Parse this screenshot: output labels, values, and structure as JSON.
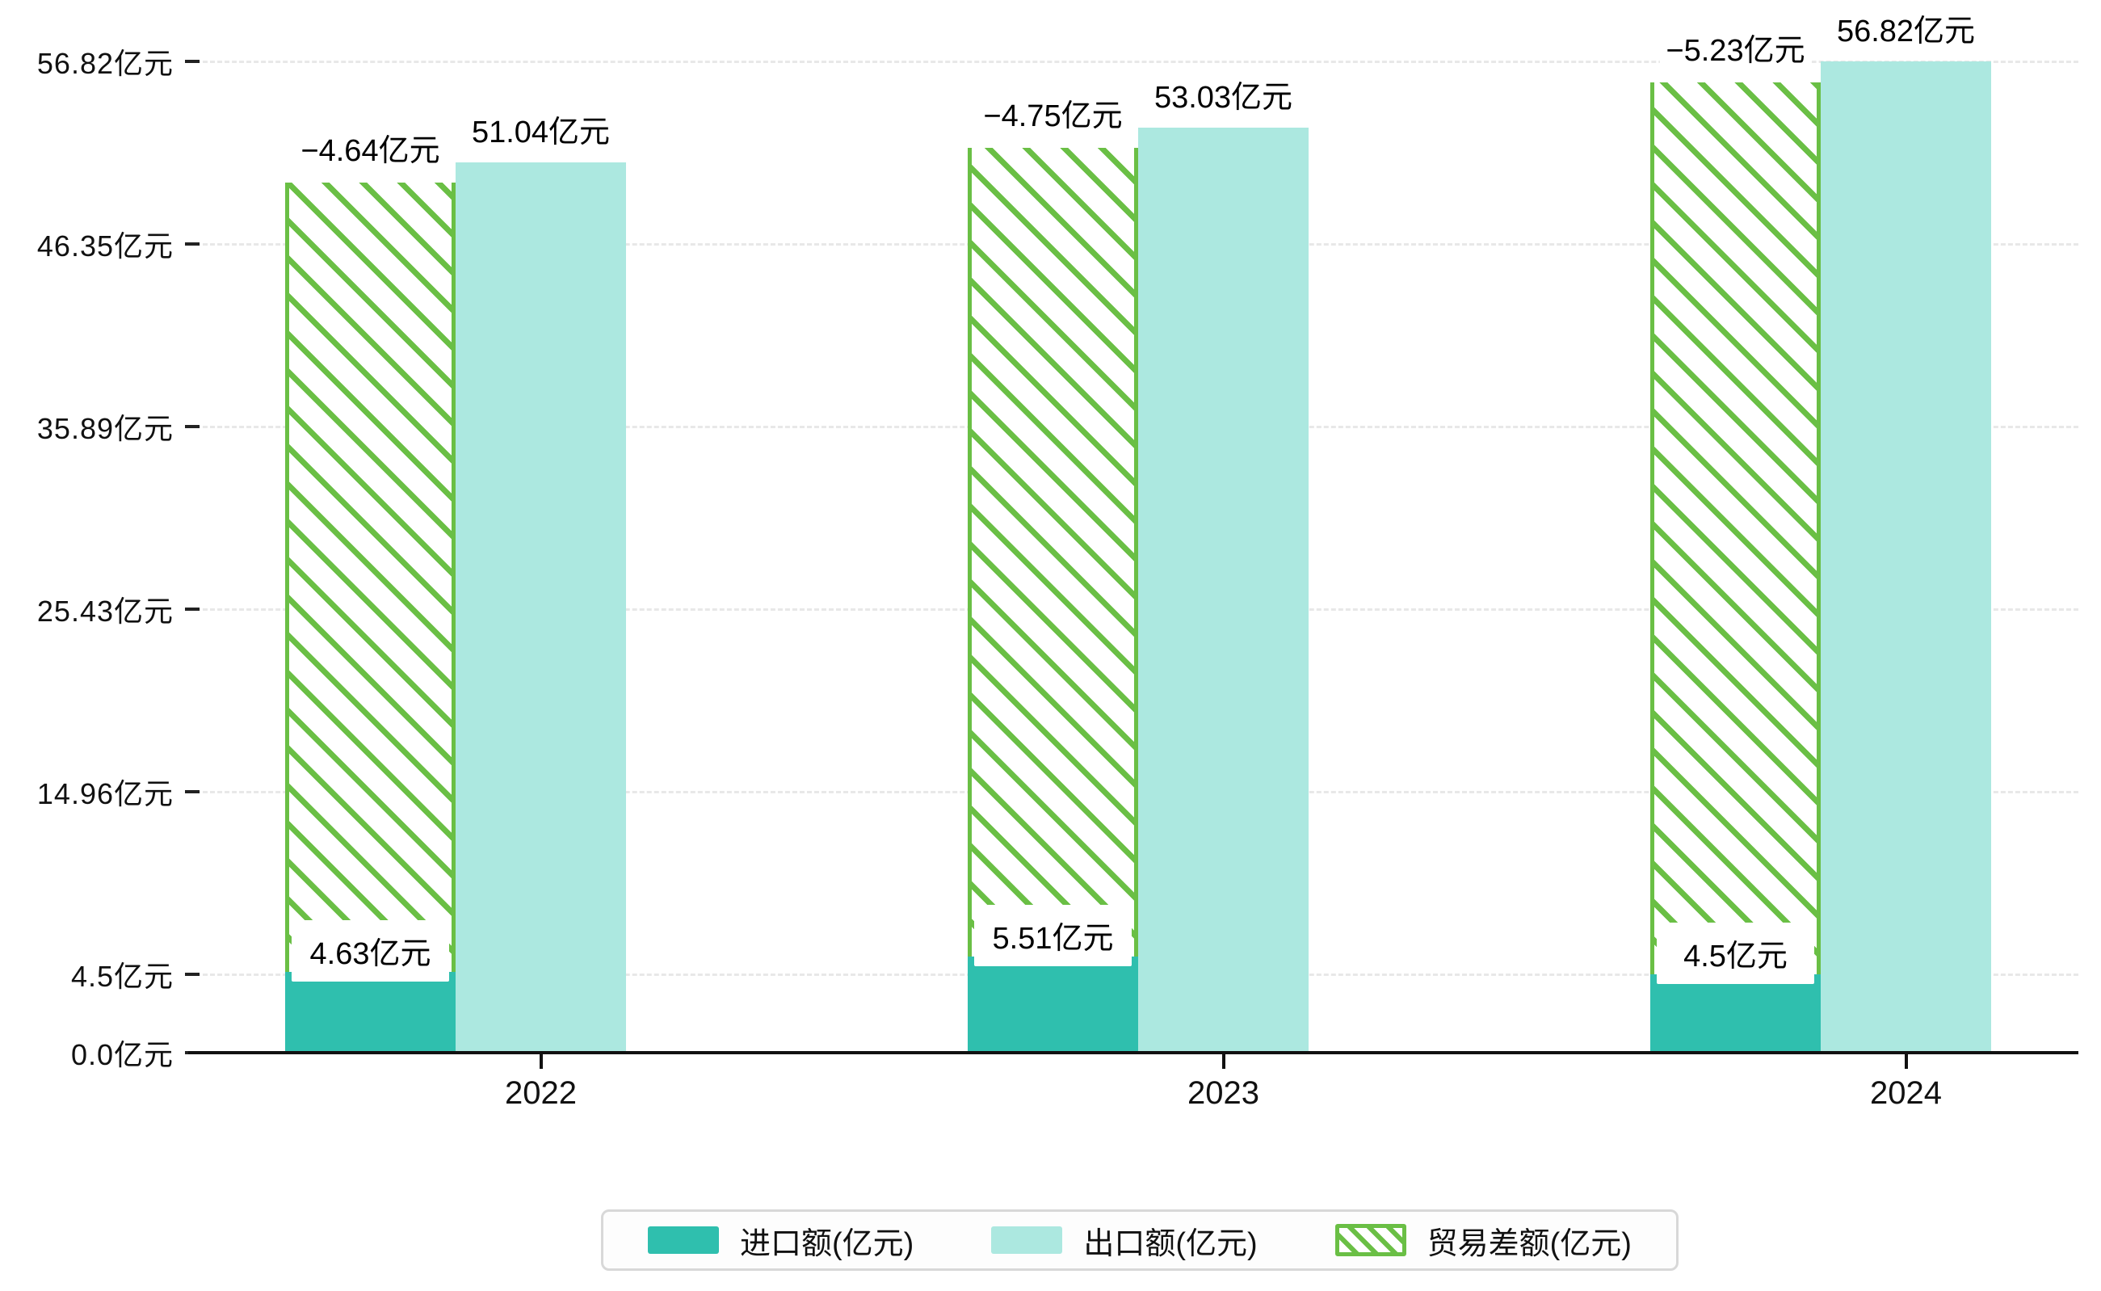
{
  "chart_data": {
    "type": "bar",
    "title": "",
    "categories": [
      "2022",
      "2023",
      "2024"
    ],
    "series": [
      {
        "name": "进口额(亿元)",
        "values": [
          4.63,
          5.51,
          4.5
        ],
        "labels": [
          "4.63亿元",
          "5.51亿元",
          "4.5亿元"
        ],
        "color": "#2fbfae",
        "style": "solid"
      },
      {
        "name": "出口额(亿元)",
        "values": [
          51.04,
          53.03,
          56.82
        ],
        "labels": [
          "51.04亿元",
          "53.03亿元",
          "56.82亿元"
        ],
        "color": "#ace8e0",
        "style": "solid"
      },
      {
        "name": "贸易差额(亿元)",
        "values": [
          -4.64,
          -4.75,
          -5.23
        ],
        "labels": [
          "−4.64亿元",
          "−4.75亿元",
          "−5.23亿元"
        ],
        "color": "#6abf45",
        "style": "hatched"
      }
    ],
    "y_axis": {
      "unit": "亿元",
      "ticks": [
        {
          "value": 0,
          "label": "0.0亿元"
        },
        {
          "value": 4.5,
          "label": "4.5亿元"
        },
        {
          "value": 14.96,
          "label": "14.96亿元"
        },
        {
          "value": 25.43,
          "label": "25.43亿元"
        },
        {
          "value": 35.89,
          "label": "35.89亿元"
        },
        {
          "value": 46.35,
          "label": "46.35亿元"
        },
        {
          "value": 56.82,
          "label": "56.82亿元"
        }
      ]
    },
    "ylim": [
      0,
      59.2
    ],
    "grid": "dashed-horizontal",
    "legend_position": "bottom"
  },
  "legend": {
    "items": [
      {
        "label": "进口额(亿元)",
        "swatch": "solid-teal"
      },
      {
        "label": "出口额(亿元)",
        "swatch": "solid-light-teal"
      },
      {
        "label": "贸易差额(亿元)",
        "swatch": "green-hatch"
      }
    ]
  },
  "colors": {
    "import_bar": "#2fbfae",
    "export_bar": "#ace8e0",
    "diff_green": "#6abf45",
    "axis": "#111111",
    "gridline": "#e8e8e8",
    "legend_border": "#d8d8d8",
    "label_text": "#000000"
  }
}
